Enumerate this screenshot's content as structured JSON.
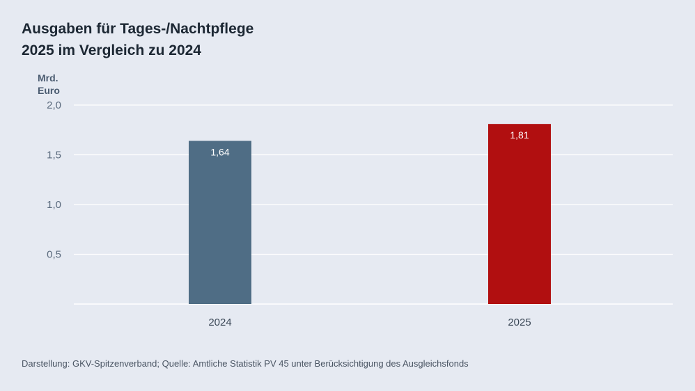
{
  "title_line1": "Ausgaben für Tages-/Nachtpflege",
  "title_line2": "2025 im Vergleich zu 2024",
  "ylabel_line1": "Mrd.",
  "ylabel_line2": "Euro",
  "footer": "Darstellung: GKV-Spitzenverband; Quelle: Amtliche Statistik PV 45 unter Berücksichtigung des Ausgleichsfonds",
  "colors": {
    "background": "#e6eaf2",
    "bar_2024": "#4f6d85",
    "bar_2025": "#b10f10",
    "grid": "#ffffff"
  },
  "chart_data": {
    "type": "bar",
    "categories": [
      "2024",
      "2025"
    ],
    "values": [
      1.64,
      1.81
    ],
    "value_labels": [
      "1,64",
      "1,81"
    ],
    "bar_colors": [
      "#4f6d85",
      "#b10f10"
    ],
    "ylim": [
      0,
      2.0
    ],
    "yticks": [
      0.5,
      1.0,
      1.5,
      2.0
    ],
    "ytick_labels": [
      "0,5",
      "1,0",
      "1,5",
      "2,0"
    ],
    "grid": true
  }
}
